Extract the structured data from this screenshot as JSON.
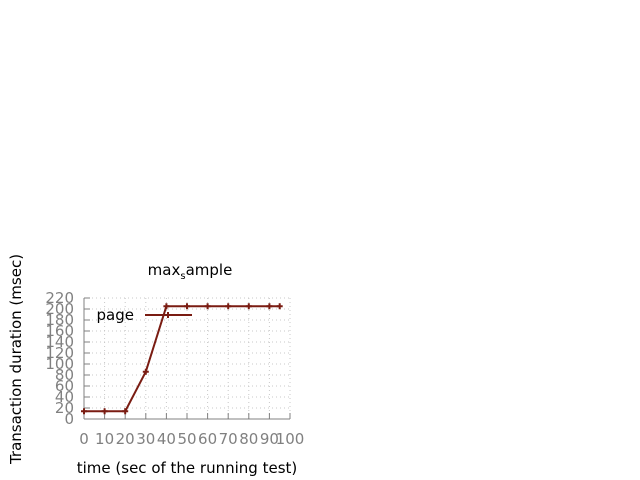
{
  "colors": {
    "series": "#7a1c12",
    "axis": "#808080",
    "grid": "#c8c8c8",
    "text": "#000000",
    "tick_text": "#808080"
  },
  "chart_data": {
    "type": "line",
    "title": "max_sample",
    "title_main": "max",
    "title_sub": "s",
    "title_rest": "ample",
    "xlabel": "time (sec of the running test)",
    "ylabel": "Transaction duration (msec)",
    "xlim": [
      0,
      100
    ],
    "ylim": [
      0,
      220
    ],
    "xticks": [
      0,
      10,
      20,
      30,
      40,
      50,
      60,
      70,
      80,
      90,
      100
    ],
    "xtick_labels": [
      "0",
      "10",
      "20",
      "30",
      "40",
      "50",
      "60",
      "70",
      "80",
      "90",
      "100"
    ],
    "yticks": [
      0,
      20,
      40,
      60,
      80,
      100,
      120,
      140,
      160,
      180,
      200,
      220
    ],
    "ytick_labels": [
      "0",
      "20",
      "40",
      "60",
      "80",
      "100",
      "120",
      "140",
      "160",
      "180",
      "200",
      "220"
    ],
    "grid": true,
    "legend_position": "top-left",
    "series": [
      {
        "name": "page",
        "x": [
          0,
          10,
          20,
          30,
          40,
          50,
          60,
          70,
          80,
          90,
          95
        ],
        "y": [
          14,
          14,
          14,
          86,
          205,
          205,
          205,
          205,
          205,
          205,
          205
        ]
      }
    ]
  }
}
